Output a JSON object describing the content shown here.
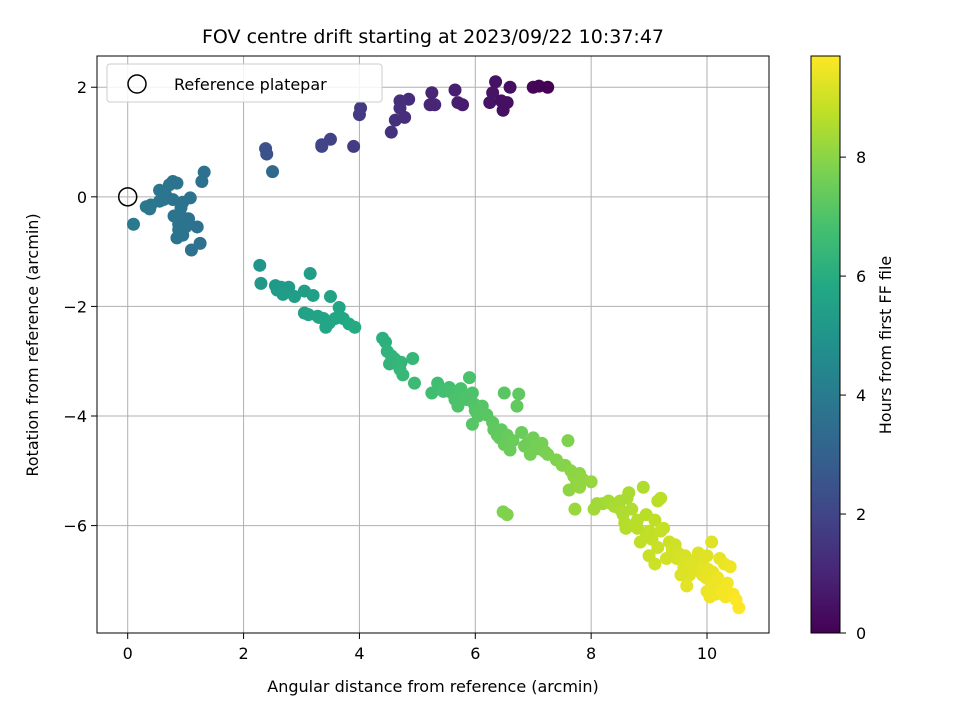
{
  "chart_data": {
    "type": "scatter",
    "title": "FOV centre drift starting at 2023/09/22 10:37:47",
    "xlabel": "Angular distance from reference (arcmin)",
    "ylabel": "Rotation from reference (arcmin)",
    "xlim": [
      -0.53,
      11.07
    ],
    "ylim": [
      -7.96,
      2.57
    ],
    "xticks": [
      0,
      2,
      4,
      6,
      8,
      10
    ],
    "yticks": [
      -6,
      -4,
      -2,
      0,
      2
    ],
    "grid": true,
    "legend": {
      "placement": "top-left",
      "entries": [
        "Reference platepar"
      ]
    },
    "reference_point": {
      "x": 0,
      "y": 0,
      "label": "Reference platepar"
    },
    "colorbar": {
      "label": "Hours from first FF file",
      "range": [
        0,
        9.7
      ],
      "ticks": [
        0,
        2,
        4,
        6,
        8
      ],
      "colormap": "viridis"
    },
    "series": [
      {
        "points": [
          [
            6.6,
            2.0
          ],
          [
            7.0,
            2.0
          ],
          [
            7.1,
            2.02
          ],
          [
            7.25,
            2.0
          ],
          [
            6.35,
            2.1
          ],
          [
            6.3,
            1.9
          ],
          [
            6.25,
            1.72
          ],
          [
            6.45,
            1.75
          ],
          [
            6.55,
            1.72
          ],
          [
            6.48,
            1.58
          ],
          [
            5.65,
            1.95
          ],
          [
            5.7,
            1.72
          ],
          [
            5.78,
            1.68
          ],
          [
            5.25,
            1.9
          ],
          [
            5.3,
            1.68
          ],
          [
            5.22,
            1.68
          ],
          [
            4.85,
            1.78
          ],
          [
            4.7,
            1.75
          ],
          [
            4.7,
            1.62
          ],
          [
            4.62,
            1.4
          ],
          [
            4.78,
            1.45
          ],
          [
            4.55,
            1.18
          ],
          [
            4.02,
            1.62
          ],
          [
            4.0,
            1.5
          ],
          [
            3.5,
            1.05
          ],
          [
            3.35,
            0.95
          ],
          [
            3.35,
            0.92
          ],
          [
            3.9,
            0.92
          ],
          [
            2.38,
            0.88
          ],
          [
            2.4,
            0.78
          ],
          [
            2.5,
            0.46
          ],
          [
            1.32,
            0.45
          ],
          [
            1.28,
            0.28
          ],
          [
            0.78,
            0.28
          ],
          [
            0.72,
            0.22
          ],
          [
            0.85,
            0.25
          ],
          [
            0.55,
            0.12
          ],
          [
            0.65,
            0.05
          ],
          [
            0.62,
            -0.05
          ],
          [
            0.55,
            -0.08
          ],
          [
            0.4,
            -0.15
          ],
          [
            0.32,
            -0.18
          ],
          [
            0.38,
            -0.22
          ],
          [
            0.1,
            -0.5
          ],
          [
            0.78,
            -0.05
          ],
          [
            0.95,
            -0.1
          ],
          [
            1.08,
            -0.02
          ],
          [
            0.92,
            -0.2
          ],
          [
            0.8,
            -0.35
          ],
          [
            0.95,
            -0.38
          ],
          [
            1.05,
            -0.4
          ],
          [
            0.88,
            -0.5
          ],
          [
            1.0,
            -0.55
          ],
          [
            0.88,
            -0.6
          ],
          [
            1.2,
            -0.55
          ],
          [
            0.85,
            -0.75
          ],
          [
            0.95,
            -0.7
          ],
          [
            1.25,
            -0.85
          ],
          [
            1.1,
            -0.97
          ],
          [
            2.28,
            -1.25
          ],
          [
            2.3,
            -1.58
          ],
          [
            2.55,
            -1.62
          ],
          [
            2.58,
            -1.7
          ],
          [
            2.65,
            -1.65
          ],
          [
            2.78,
            -1.65
          ],
          [
            2.68,
            -1.78
          ],
          [
            2.88,
            -1.82
          ],
          [
            3.15,
            -1.4
          ],
          [
            3.05,
            -1.72
          ],
          [
            3.2,
            -1.8
          ],
          [
            3.5,
            -1.82
          ],
          [
            3.05,
            -2.12
          ],
          [
            3.12,
            -2.15
          ],
          [
            3.3,
            -2.2
          ],
          [
            3.28,
            -2.18
          ],
          [
            3.38,
            -2.22
          ],
          [
            3.42,
            -2.38
          ],
          [
            3.48,
            -2.3
          ],
          [
            3.58,
            -2.22
          ],
          [
            3.65,
            -2.02
          ],
          [
            3.72,
            -2.22
          ],
          [
            3.82,
            -2.32
          ],
          [
            3.92,
            -2.38
          ],
          [
            4.4,
            -2.58
          ],
          [
            4.45,
            -2.65
          ],
          [
            4.48,
            -2.82
          ],
          [
            4.55,
            -2.9
          ],
          [
            4.6,
            -2.95
          ],
          [
            4.52,
            -3.05
          ],
          [
            4.65,
            -3.0
          ],
          [
            4.72,
            -3.02
          ],
          [
            4.7,
            -3.15
          ],
          [
            4.75,
            -3.25
          ],
          [
            4.92,
            -2.95
          ],
          [
            4.95,
            -3.4
          ],
          [
            5.35,
            -3.4
          ],
          [
            5.25,
            -3.58
          ],
          [
            5.45,
            -3.55
          ],
          [
            5.55,
            -3.48
          ],
          [
            5.6,
            -3.58
          ],
          [
            5.65,
            -3.7
          ],
          [
            5.7,
            -3.82
          ],
          [
            5.75,
            -3.5
          ],
          [
            5.8,
            -3.65
          ],
          [
            5.85,
            -3.7
          ],
          [
            5.9,
            -3.3
          ],
          [
            5.95,
            -3.58
          ],
          [
            5.98,
            -3.78
          ],
          [
            6.0,
            -3.9
          ],
          [
            6.05,
            -4.0
          ],
          [
            6.12,
            -3.82
          ],
          [
            6.2,
            -3.98
          ],
          [
            5.95,
            -4.15
          ],
          [
            6.3,
            -4.12
          ],
          [
            6.32,
            -4.25
          ],
          [
            6.38,
            -4.35
          ],
          [
            6.42,
            -4.4
          ],
          [
            6.45,
            -4.25
          ],
          [
            6.5,
            -4.52
          ],
          [
            6.55,
            -4.35
          ],
          [
            6.6,
            -4.62
          ],
          [
            6.65,
            -4.45
          ],
          [
            6.72,
            -3.82
          ],
          [
            6.5,
            -3.58
          ],
          [
            6.75,
            -3.6
          ],
          [
            6.8,
            -4.3
          ],
          [
            6.85,
            -4.55
          ],
          [
            6.9,
            -4.5
          ],
          [
            6.95,
            -4.7
          ],
          [
            7.0,
            -4.4
          ],
          [
            7.05,
            -4.55
          ],
          [
            7.1,
            -4.6
          ],
          [
            7.15,
            -4.5
          ],
          [
            7.2,
            -4.65
          ],
          [
            7.25,
            -4.7
          ],
          [
            6.48,
            -5.75
          ],
          [
            6.55,
            -5.8
          ],
          [
            7.4,
            -4.8
          ],
          [
            7.5,
            -4.9
          ],
          [
            7.6,
            -4.45
          ],
          [
            7.55,
            -4.9
          ],
          [
            7.65,
            -5.0
          ],
          [
            7.7,
            -5.1
          ],
          [
            7.75,
            -5.2
          ],
          [
            7.8,
            -5.05
          ],
          [
            7.85,
            -5.15
          ],
          [
            7.62,
            -5.35
          ],
          [
            7.8,
            -5.3
          ],
          [
            7.72,
            -5.7
          ],
          [
            8.0,
            -5.2
          ],
          [
            8.05,
            -5.7
          ],
          [
            8.1,
            -5.6
          ],
          [
            8.2,
            -5.6
          ],
          [
            8.3,
            -5.55
          ],
          [
            8.35,
            -5.6
          ],
          [
            8.4,
            -5.65
          ],
          [
            8.5,
            -5.7
          ],
          [
            8.5,
            -5.55
          ],
          [
            8.55,
            -5.8
          ],
          [
            8.58,
            -5.95
          ],
          [
            8.6,
            -6.05
          ],
          [
            8.62,
            -5.5
          ],
          [
            8.65,
            -5.4
          ],
          [
            8.7,
            -5.7
          ],
          [
            8.72,
            -6.0
          ],
          [
            8.8,
            -5.9
          ],
          [
            8.9,
            -5.3
          ],
          [
            8.95,
            -5.8
          ],
          [
            9.0,
            -6.1
          ],
          [
            9.1,
            -5.9
          ],
          [
            9.15,
            -5.55
          ],
          [
            9.2,
            -5.5
          ],
          [
            9.25,
            -6.05
          ],
          [
            9.05,
            -6.25
          ],
          [
            9.15,
            -6.4
          ],
          [
            9.3,
            -6.6
          ],
          [
            9.35,
            -6.3
          ],
          [
            9.4,
            -6.45
          ],
          [
            9.45,
            -6.35
          ],
          [
            9.48,
            -6.6
          ],
          [
            9.5,
            -6.5
          ],
          [
            9.55,
            -6.6
          ],
          [
            9.6,
            -6.75
          ],
          [
            9.62,
            -6.55
          ],
          [
            9.65,
            -6.7
          ],
          [
            9.7,
            -6.9
          ],
          [
            9.75,
            -6.7
          ],
          [
            9.8,
            -6.8
          ],
          [
            9.82,
            -6.6
          ],
          [
            9.85,
            -6.5
          ],
          [
            9.9,
            -6.7
          ],
          [
            9.92,
            -6.9
          ],
          [
            9.95,
            -6.75
          ],
          [
            9.98,
            -6.95
          ],
          [
            10.0,
            -6.55
          ],
          [
            10.02,
            -6.8
          ],
          [
            10.05,
            -7.0
          ],
          [
            10.08,
            -6.3
          ],
          [
            10.1,
            -6.85
          ],
          [
            10.12,
            -7.1
          ],
          [
            10.15,
            -7.25
          ],
          [
            10.18,
            -6.95
          ],
          [
            10.2,
            -7.0
          ],
          [
            10.22,
            -6.6
          ],
          [
            10.25,
            -7.2
          ],
          [
            10.3,
            -6.7
          ],
          [
            10.32,
            -7.3
          ],
          [
            10.35,
            -7.05
          ],
          [
            10.4,
            -6.75
          ],
          [
            10.45,
            -7.25
          ],
          [
            10.5,
            -7.35
          ],
          [
            10.55,
            -7.5
          ],
          [
            9.1,
            -6.7
          ],
          [
            9.55,
            -6.9
          ],
          [
            9.65,
            -7.1
          ],
          [
            9.0,
            -6.55
          ],
          [
            8.85,
            -6.3
          ],
          [
            8.95,
            -6.2
          ],
          [
            9.2,
            -6.1
          ],
          [
            8.8,
            -6.05
          ],
          [
            8.55,
            -5.75
          ],
          [
            10.0,
            -7.2
          ],
          [
            10.05,
            -7.3
          ]
        ]
      }
    ]
  }
}
